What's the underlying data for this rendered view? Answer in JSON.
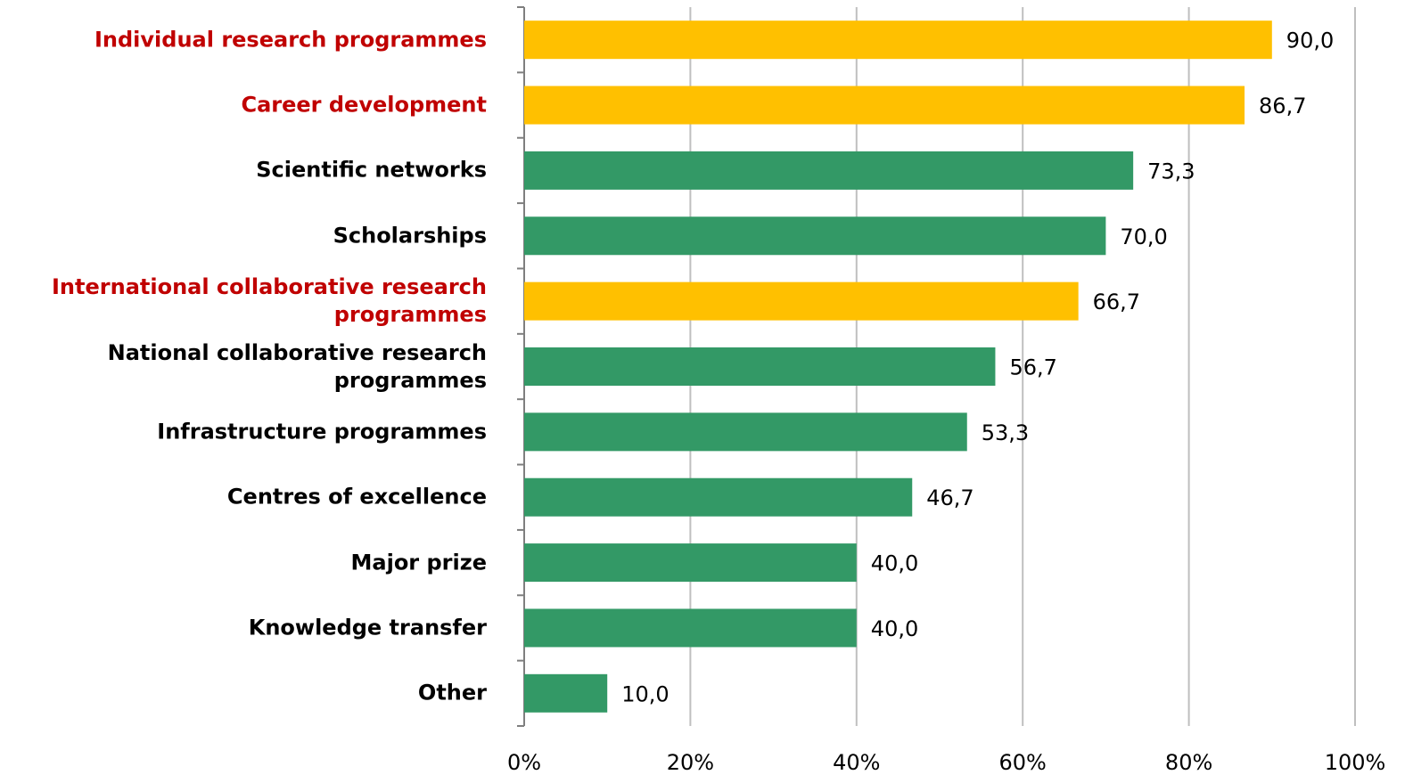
{
  "chart_data": {
    "type": "hbar",
    "categories": [
      "Individual research programmes",
      "Career development",
      "Scientific networks",
      "Scholarships",
      "International collaborative research programmes",
      "National collaborative research programmes",
      "Infrastructure programmes",
      "Centres of excellence",
      "Major prize",
      "Knowledge transfer",
      "Other"
    ],
    "values": [
      90.0,
      86.7,
      73.3,
      70.0,
      66.7,
      56.7,
      53.3,
      46.7,
      40.0,
      40.0,
      10.0
    ],
    "value_labels": [
      "90,0",
      "86,7",
      "73,3",
      "70,0",
      "66,7",
      "56,7",
      "53,3",
      "46,7",
      "40,0",
      "40,0",
      "10,0"
    ],
    "colors": [
      "#ffc000",
      "#ffc000",
      "#339966",
      "#339966",
      "#ffc000",
      "#339966",
      "#339966",
      "#339966",
      "#339966",
      "#339966",
      "#339966"
    ],
    "label_colors": [
      "#c00000",
      "#c00000",
      "#000000",
      "#000000",
      "#c00000",
      "#000000",
      "#000000",
      "#000000",
      "#000000",
      "#000000",
      "#000000"
    ],
    "xlim": [
      0,
      100
    ],
    "xticks": [
      {
        "value": 0,
        "label": "0%"
      },
      {
        "value": 20,
        "label": "20%"
      },
      {
        "value": 40,
        "label": "40%"
      },
      {
        "value": 60,
        "label": "60%"
      },
      {
        "value": 80,
        "label": "80%"
      },
      {
        "value": 100,
        "label": "100%"
      }
    ],
    "grid": true
  }
}
